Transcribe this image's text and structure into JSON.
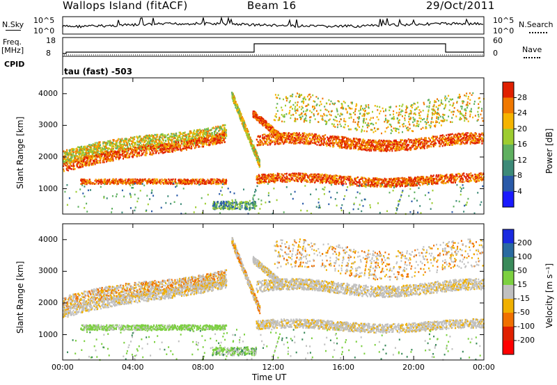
{
  "header": {
    "station": "Wallops Island (fitACF)",
    "beam": "Beam 16",
    "date": "29/Oct/2011",
    "nsky_label": "N.Sky",
    "nsky_tick_hi": "10^5",
    "nsky_tick_lo": "10^0",
    "nsearch_label": "N.Search",
    "nsearch_tick_hi": "10^5",
    "nsearch_tick_lo": "10^0",
    "freq_label": "Freq.",
    "freq_unit": "[MHz]",
    "freq_tick_hi": "18",
    "freq_tick_lo": "8",
    "nave_label": "Nave",
    "nave_tick_hi": "60",
    "nave_tick_lo": "0",
    "cpid_label": "CPID",
    "cpid_value": "tau (fast) -503"
  },
  "chart_data": [
    {
      "type": "heatmap",
      "name": "power",
      "ylabel": "Slant Range [km]",
      "xlabel": "Time UT",
      "yticks": [
        "1000",
        "2000",
        "3000",
        "4000"
      ],
      "ylim": [
        200,
        4500
      ],
      "colorbar_label": "Power [dB]",
      "colorbar_ticks": [
        "4",
        "8",
        "12",
        "16",
        "20",
        "24",
        "28"
      ],
      "colors": [
        "#1a1aff",
        "#2a5aa8",
        "#3d8a78",
        "#5fb060",
        "#9dcc30",
        "#f5b400",
        "#f07800",
        "#e02000"
      ]
    },
    {
      "type": "heatmap",
      "name": "velocity",
      "ylabel": "Slant Range [km]",
      "xlabel": "Time UT",
      "yticks": [
        "1000",
        "2000",
        "3000",
        "4000"
      ],
      "ylim": [
        200,
        4500
      ],
      "colorbar_label": "Velocity [m s⁻¹]",
      "colorbar_ticks": [
        "200",
        "100",
        "50",
        "15",
        "-15",
        "-50",
        "-100",
        "-200"
      ],
      "colors": [
        "#1a2ae0",
        "#2a6aa0",
        "#3a8a5a",
        "#7cd040",
        "#c0c0c0",
        "#f0b000",
        "#f07000",
        "#e02000",
        "#ff0000"
      ]
    }
  ],
  "time_axis": {
    "label": "Time UT",
    "ticks": [
      "00:00",
      "04:00",
      "08:00",
      "12:00",
      "16:00",
      "20:00",
      "00:00"
    ]
  }
}
